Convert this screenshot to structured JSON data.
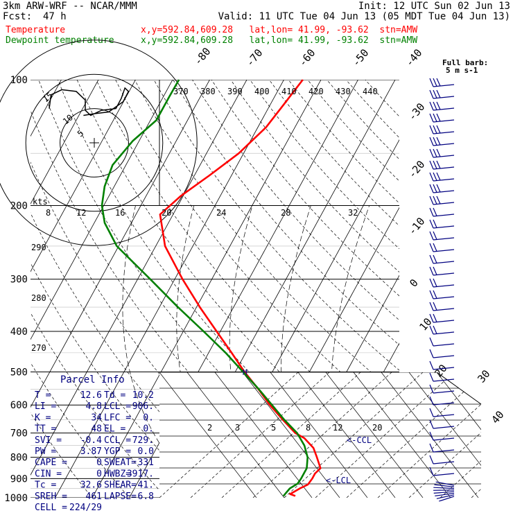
{
  "header": {
    "model": "3km ARW-WRF -- NCAR/MMM",
    "init": "Init: 12 UTC Sun 02 Jun 13",
    "fcst_label": "Fcst:",
    "fcst_value": "47 h",
    "valid": "Valid: 11 UTC Tue 04 Jun 13 (05 MDT Tue 04 Jun 13)",
    "temp_label": "Temperature",
    "temp_loc": "x,y=592.84,609.28   lat,lon= 41.99, -93.62  stn=AMW",
    "dew_label": "Dewpoint temperature",
    "dew_loc": "x,y=592.84,609.28   lat,lon= 41.99, -93.62  stn=AMW"
  },
  "colors": {
    "temperature": "#ff0000",
    "dewpoint": "#008000",
    "text_blue": "#000080",
    "header_red": "#ff0000",
    "header_green": "#008000"
  },
  "barb_label": [
    "Full barb:",
    "5 m s-1"
  ],
  "hodograph": {
    "unit": "kts",
    "ring_labels": [
      "5",
      "10",
      "15"
    ],
    "path": [
      [
        -12.5,
        10
      ],
      [
        -12,
        14
      ],
      [
        -9,
        15.5
      ],
      [
        -5,
        15
      ],
      [
        -2.5,
        12.5
      ],
      [
        -2.5,
        9.5
      ],
      [
        -1,
        8
      ],
      [
        2,
        9.5
      ],
      [
        6,
        10
      ],
      [
        7.5,
        13
      ],
      [
        8.5,
        16
      ],
      [
        9.5,
        15
      ],
      [
        8,
        12
      ],
      [
        4,
        9
      ],
      [
        0,
        8.5
      ],
      [
        -3,
        8
      ]
    ]
  },
  "parcel_info": {
    "title": "Parcel Info",
    "rows": [
      [
        "T    =",
        "12.6",
        "Td =",
        "10.2"
      ],
      [
        "LI   =",
        "4.8",
        "LCL =",
        "906."
      ],
      [
        "K    =",
        "34",
        "LFC =",
        "0."
      ],
      [
        "TT   =",
        "48",
        "EL  =",
        "0."
      ],
      [
        "SVI  =",
        "-0.4",
        "CCL =",
        "729."
      ],
      [
        "PW   =",
        "3.87",
        "YGP =",
        "0.0"
      ],
      [
        "CAPE =",
        "0",
        "SWEAT=",
        "331"
      ],
      [
        "CIN  =",
        "0",
        "HWBZ=",
        "3917."
      ],
      [
        "Tc   =",
        "32.6",
        "SHEAR=",
        "41."
      ],
      [
        "SREH =",
        "461",
        "LAPSE=",
        "6.8"
      ],
      [
        "CELL =",
        "224/29",
        "",
        ""
      ]
    ]
  },
  "annotations": {
    "ccl": "<-CCL",
    "lcl": "<-LCL",
    "m": "M"
  },
  "chart_data": {
    "type": "line",
    "title": "",
    "xlabel": "",
    "ylabel": "",
    "pressure_levels": [
      1000,
      900,
      800,
      700,
      600,
      500,
      400,
      300,
      200,
      100
    ],
    "pressure_labels": [
      "1000",
      "900",
      "800",
      "700",
      "600",
      "500",
      "400",
      "300",
      "200",
      "100"
    ],
    "isotherm_labels": [
      "-80",
      "-70",
      "-60",
      "-50",
      "-40",
      "-30",
      "-20",
      "-10",
      "0",
      "10",
      "20",
      "30",
      "40"
    ],
    "isotherm_values": [
      -80,
      -70,
      -60,
      -50,
      -40,
      -30,
      -20,
      -10,
      0,
      10,
      20,
      30,
      40
    ],
    "theta_labels": [
      "370",
      "380",
      "390",
      "400",
      "410",
      "420",
      "430",
      "440"
    ],
    "theta_left_labels": [
      "290",
      "280",
      "270"
    ],
    "knot_labels": [
      "8",
      "12",
      "16",
      "20",
      "24",
      "28",
      "32"
    ],
    "mixing_ratio_labels": [
      "2",
      "3",
      "5",
      "8",
      "12",
      "20"
    ],
    "series": [
      {
        "name": "Temperature",
        "pressure": [
          990,
          980,
          950,
          930,
          900,
          875,
          850,
          800,
          760,
          720,
          700,
          650,
          600,
          550,
          500,
          450,
          400,
          350,
          300,
          250,
          210,
          190,
          170,
          150,
          130,
          115,
          100
        ],
        "values": [
          14.5,
          12.8,
          14.6,
          16.2,
          16.5,
          16.5,
          17.2,
          14.6,
          12.3,
          8.4,
          5.2,
          -0.2,
          -5.8,
          -11.2,
          -17.5,
          -23.8,
          -31.0,
          -39.1,
          -47.9,
          -57.5,
          -63.5,
          -60.7,
          -56.1,
          -51.3,
          -47.8,
          -46.4,
          -44.9
        ]
      },
      {
        "name": "Dewpoint temperature",
        "pressure": [
          990,
          975,
          950,
          925,
          900,
          850,
          800,
          750,
          700,
          650,
          600,
          550,
          500,
          450,
          400,
          350,
          300,
          250,
          220,
          200,
          180,
          160,
          140,
          125,
          110,
          100
        ],
        "values": [
          11.3,
          11.5,
          11.9,
          13.3,
          13.5,
          13.5,
          12.1,
          9.5,
          5.7,
          0.2,
          -5.2,
          -11.1,
          -17.9,
          -25.4,
          -34.5,
          -45.0,
          -56.6,
          -70.5,
          -77.2,
          -80.5,
          -82.6,
          -83.6,
          -81.7,
          -78.4,
          -78.4,
          -78.3
        ]
      }
    ]
  }
}
